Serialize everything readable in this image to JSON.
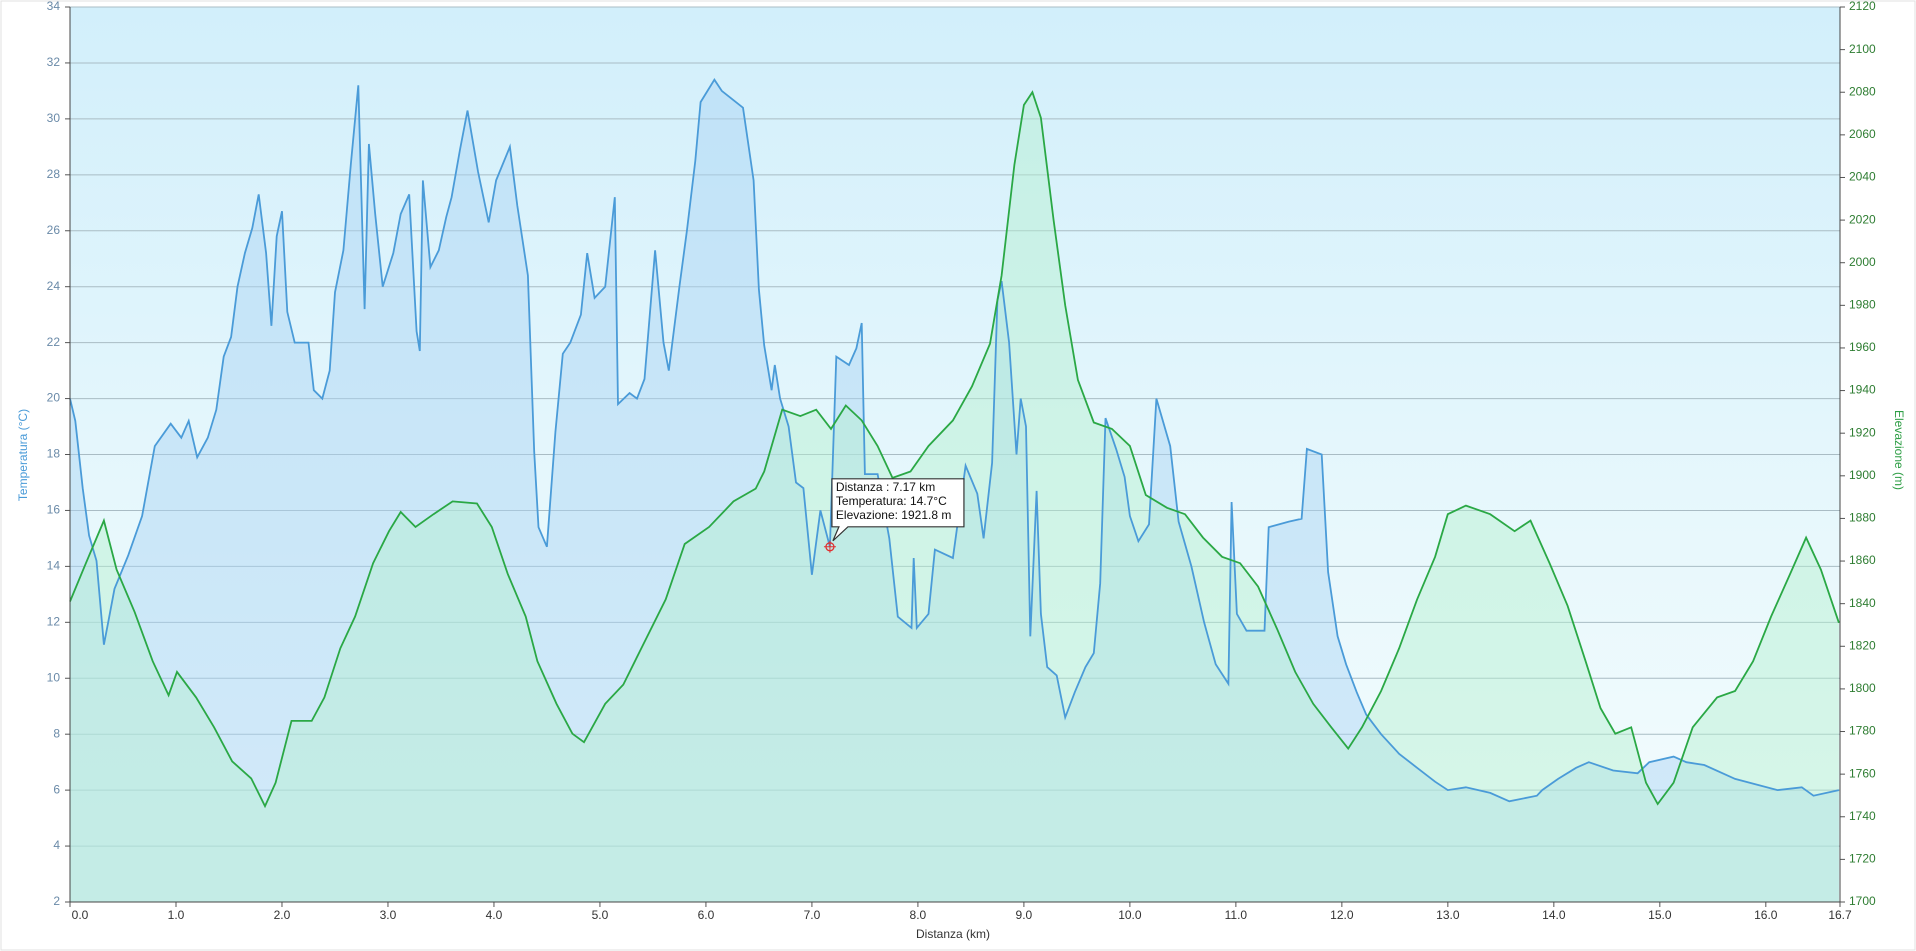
{
  "chart_data": {
    "type": "line",
    "xlabel": "Distanza  (km)",
    "ylabel": "Temperatura (°C)",
    "y2label": "Elevazione (m)",
    "xlim": [
      0,
      16.7
    ],
    "xticks": [
      {
        "value": 0,
        "label": "0.0"
      },
      {
        "value": 1,
        "label": "1.0"
      },
      {
        "value": 2,
        "label": "2.0"
      },
      {
        "value": 3,
        "label": "3.0"
      },
      {
        "value": 4,
        "label": "4.0"
      },
      {
        "value": 5,
        "label": "5.0"
      },
      {
        "value": 6,
        "label": "6.0"
      },
      {
        "value": 7,
        "label": "7.0"
      },
      {
        "value": 8,
        "label": "8.0"
      },
      {
        "value": 9,
        "label": "9.0"
      },
      {
        "value": 10,
        "label": "10.0"
      },
      {
        "value": 11,
        "label": "11.0"
      },
      {
        "value": 12,
        "label": "12.0"
      },
      {
        "value": 13,
        "label": "13.0"
      },
      {
        "value": 14,
        "label": "14.0"
      },
      {
        "value": 15,
        "label": "15.0"
      },
      {
        "value": 16,
        "label": "16.0"
      },
      16.7
    ],
    "ylim": [
      2,
      34
    ],
    "yticks": [
      2,
      4,
      6,
      8,
      10,
      12,
      14,
      16,
      18,
      20,
      22,
      24,
      26,
      28,
      30,
      32,
      34
    ],
    "y2lim": [
      1700,
      2120
    ],
    "y2ticks": [
      1700,
      1720,
      1740,
      1760,
      1780,
      1800,
      1820,
      1840,
      1860,
      1880,
      1900,
      1920,
      1940,
      1960,
      1980,
      2000,
      2020,
      2040,
      2060,
      2080,
      2100,
      2120
    ],
    "grid": true,
    "series": [
      {
        "color": "#4a9bd8",
        "fill": "#a9d3f3",
        "axis": "y",
        "x": [
          0,
          0.05,
          0.12,
          0.18,
          0.25,
          0.32,
          0.36,
          0.42,
          0.55,
          0.68,
          0.8,
          0.95,
          1.05,
          1.12,
          1.2,
          1.3,
          1.38,
          1.45,
          1.52,
          1.58,
          1.65,
          1.72,
          1.78,
          1.85,
          1.9,
          1.95,
          2.0,
          2.05,
          2.12,
          2.25,
          2.3,
          2.38,
          2.45,
          2.5,
          2.58,
          2.65,
          2.72,
          2.78,
          2.82,
          2.88,
          2.95,
          3.05,
          3.12,
          3.2,
          3.27,
          3.3,
          3.33,
          3.4,
          3.48,
          3.55,
          3.6,
          3.68,
          3.75,
          3.85,
          3.95,
          4.02,
          4.15,
          4.22,
          4.32,
          4.38,
          4.42,
          4.5,
          4.58,
          4.65,
          4.72,
          4.82,
          4.88,
          4.95,
          5.05,
          5.14,
          5.17,
          5.28,
          5.35,
          5.42,
          5.52,
          5.6,
          5.65,
          5.75,
          5.82,
          5.9,
          5.95,
          6.08,
          6.15,
          6.25,
          6.35,
          6.45,
          6.5,
          6.55,
          6.62,
          6.65,
          6.7,
          6.78,
          6.85,
          6.92,
          7.0,
          7.08,
          7.17,
          7.23,
          7.35,
          7.42,
          7.47,
          7.5,
          7.62,
          7.73,
          7.81,
          7.94,
          7.96,
          7.99,
          8.1,
          8.16,
          8.33,
          8.45,
          8.56,
          8.62,
          8.7,
          8.75,
          8.79,
          8.86,
          8.93,
          8.97,
          9.02,
          9.06,
          9.12,
          9.16,
          9.22,
          9.31,
          9.39,
          9.48,
          9.58,
          9.66,
          9.72,
          9.77,
          9.87,
          9.95,
          10.0,
          10.08,
          10.18,
          10.25,
          10.38,
          10.46,
          10.58,
          10.7,
          10.81,
          10.93,
          10.96,
          11.01,
          11.1,
          11.27,
          11.31,
          11.5,
          11.62,
          11.67,
          11.81,
          11.87,
          11.96,
          12.04,
          12.14,
          12.23,
          12.37,
          12.54,
          12.71,
          12.88,
          13.0,
          13.17,
          13.4,
          13.58,
          13.84,
          13.89,
          14.04,
          14.21,
          14.33,
          14.56,
          14.79,
          14.9,
          15.13,
          15.25,
          15.42,
          15.71,
          16.11,
          16.34,
          16.45,
          16.69
        ],
        "values": [
          20.0,
          19.2,
          16.8,
          15.1,
          14.2,
          11.2,
          12.0,
          13.2,
          14.4,
          15.8,
          18.3,
          19.1,
          18.6,
          19.2,
          17.9,
          18.6,
          19.6,
          21.5,
          22.2,
          24.0,
          25.2,
          26.1,
          27.3,
          25.2,
          22.6,
          25.8,
          26.7,
          23.1,
          22.0,
          22.0,
          20.3,
          20.0,
          21.0,
          23.8,
          25.3,
          28.4,
          31.2,
          23.2,
          29.1,
          26.6,
          24.0,
          25.2,
          26.6,
          27.3,
          22.4,
          21.7,
          27.8,
          24.7,
          25.3,
          26.5,
          27.2,
          28.9,
          30.3,
          28.1,
          26.3,
          27.8,
          29.0,
          26.9,
          24.4,
          18.1,
          15.4,
          14.7,
          18.8,
          21.6,
          22.0,
          23.0,
          25.2,
          23.6,
          24.0,
          27.2,
          19.8,
          20.2,
          20.0,
          20.7,
          25.3,
          22.0,
          21.0,
          24.0,
          26.0,
          28.5,
          30.6,
          31.4,
          31.0,
          30.7,
          30.4,
          27.8,
          23.9,
          21.9,
          20.3,
          21.2,
          20.0,
          19.0,
          17.0,
          16.8,
          13.7,
          16.0,
          14.7,
          21.5,
          21.2,
          21.8,
          22.7,
          17.3,
          17.3,
          15.0,
          12.2,
          11.8,
          14.3,
          11.8,
          12.3,
          14.6,
          14.3,
          17.6,
          16.6,
          15.0,
          17.7,
          23.5,
          24.2,
          22.0,
          18.0,
          20.0,
          19.0,
          11.5,
          16.7,
          12.3,
          10.4,
          10.1,
          8.6,
          9.5,
          10.4,
          10.9,
          13.4,
          19.3,
          18.2,
          17.2,
          15.8,
          14.9,
          15.5,
          20.0,
          18.3,
          15.6,
          14.0,
          12.0,
          10.5,
          9.8,
          16.3,
          12.3,
          11.7,
          11.7,
          15.4,
          15.6,
          15.7,
          18.2,
          18.0,
          13.8,
          11.5,
          10.5,
          9.5,
          8.7,
          8.0,
          7.3,
          6.8,
          6.3,
          6.0,
          6.1,
          5.9,
          5.6,
          5.8,
          6.0,
          6.4,
          6.8,
          7.0,
          6.7,
          6.6,
          7.0,
          7.2,
          7.0,
          6.9,
          6.4,
          6.0,
          6.1,
          5.8,
          6.0
        ]
      },
      {
        "color": "#2aa845",
        "fill": "#b4f0cf",
        "axis": "y2",
        "x": [
          0,
          0.15,
          0.32,
          0.44,
          0.61,
          0.78,
          0.93,
          1.01,
          1.19,
          1.36,
          1.53,
          1.71,
          1.84,
          1.94,
          2.09,
          2.28,
          2.4,
          2.55,
          2.69,
          2.86,
          3.01,
          3.12,
          3.26,
          3.43,
          3.61,
          3.84,
          3.98,
          4.13,
          4.3,
          4.41,
          4.59,
          4.74,
          4.85,
          5.05,
          5.22,
          5.39,
          5.62,
          5.8,
          6.03,
          6.26,
          6.47,
          6.55,
          6.72,
          6.89,
          7.04,
          7.18,
          7.32,
          7.47,
          7.62,
          7.76,
          7.93,
          8.1,
          8.33,
          8.51,
          8.68,
          8.79,
          8.91,
          9.0,
          9.08,
          9.16,
          9.28,
          9.39,
          9.51,
          9.66,
          9.83,
          10.0,
          10.15,
          10.35,
          10.52,
          10.69,
          10.87,
          11.04,
          11.21,
          11.39,
          11.56,
          11.73,
          11.9,
          12.06,
          12.19,
          12.37,
          12.54,
          12.71,
          12.88,
          13.0,
          13.17,
          13.4,
          13.63,
          13.78,
          13.96,
          14.13,
          14.3,
          14.44,
          14.58,
          14.73,
          14.87,
          14.98,
          15.13,
          15.31,
          15.54,
          15.71,
          15.88,
          16.05,
          16.23,
          16.38,
          16.52,
          16.69
        ],
        "values": [
          1841,
          1859,
          1879,
          1856,
          1836,
          1813,
          1797,
          1808,
          1796,
          1782,
          1766,
          1758,
          1745,
          1756,
          1785,
          1785,
          1796,
          1819,
          1834,
          1859,
          1874,
          1883,
          1876,
          1882,
          1888,
          1887,
          1876,
          1854,
          1834,
          1813,
          1793,
          1779,
          1775,
          1793,
          1802,
          1819,
          1842,
          1868,
          1876,
          1888,
          1894,
          1902,
          1931,
          1928,
          1931,
          1922,
          1933,
          1926,
          1914,
          1899,
          1902,
          1914,
          1926,
          1942,
          1962,
          1994,
          2046,
          2074,
          2080,
          2068,
          2020,
          1980,
          1945,
          1925,
          1922,
          1914,
          1891,
          1885,
          1882,
          1871,
          1862,
          1859,
          1848,
          1828,
          1808,
          1793,
          1782,
          1772,
          1782,
          1799,
          1819,
          1842,
          1862,
          1882,
          1886,
          1882,
          1874,
          1879,
          1859,
          1839,
          1813,
          1791,
          1779,
          1782,
          1756,
          1746,
          1756,
          1782,
          1796,
          1799,
          1813,
          1834,
          1854,
          1871,
          1856,
          1831
        ]
      }
    ],
    "tooltip": {
      "x": 7.17,
      "y": 14.7,
      "lines": [
        "Distanza : 7.17 km",
        "Temperatura: 14.7°C",
        "Elevazione: 1921.8 m"
      ]
    }
  }
}
